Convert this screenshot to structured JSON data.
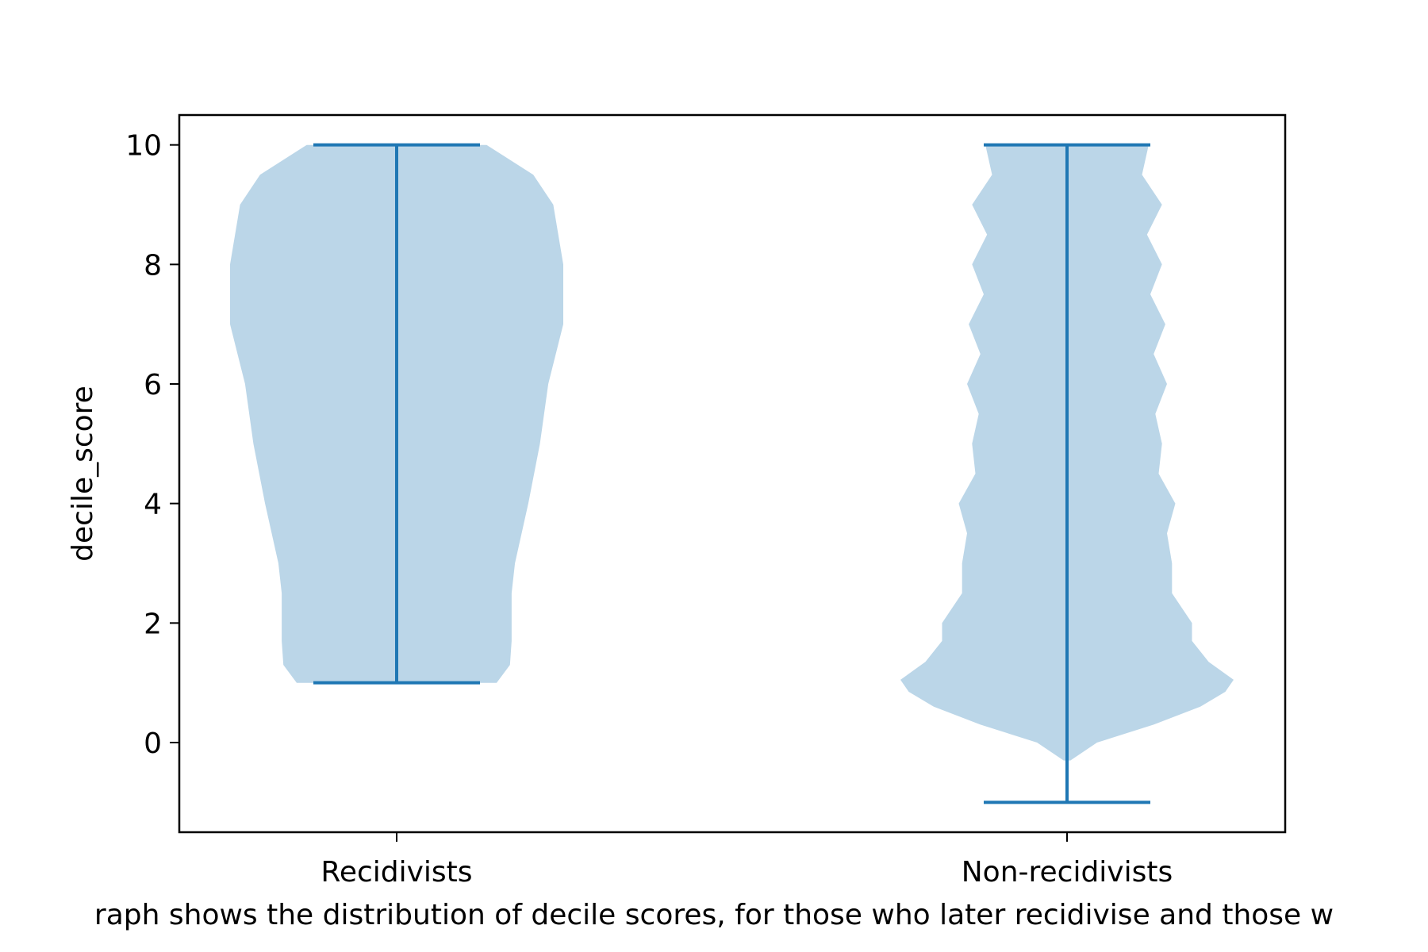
{
  "chart_data": {
    "type": "violin",
    "ylabel": "decile_score",
    "xlabel": "",
    "caption": "raph shows the distribution of decile scores, for those who later recidivise and those w",
    "ylim": [
      -1.5,
      10.5
    ],
    "yticks": [
      0,
      2,
      4,
      6,
      8,
      10
    ],
    "categories": [
      "Recidivists",
      "Non-recidivists"
    ],
    "grid": false,
    "colors": {
      "body": "#bbd6e8",
      "line": "#1f77b4",
      "axis": "#000000"
    },
    "series": [
      {
        "name": "Recidivists",
        "min": 1,
        "max": 10,
        "density_profile": [
          [
            1.0,
            0.6
          ],
          [
            1.3,
            0.68
          ],
          [
            1.7,
            0.69
          ],
          [
            2.0,
            0.69
          ],
          [
            2.5,
            0.69
          ],
          [
            3.0,
            0.71
          ],
          [
            4.0,
            0.79
          ],
          [
            5.0,
            0.86
          ],
          [
            6.0,
            0.91
          ],
          [
            7.0,
            1.0
          ],
          [
            8.0,
            1.0
          ],
          [
            9.0,
            0.94
          ],
          [
            9.5,
            0.82
          ],
          [
            10.0,
            0.54
          ]
        ]
      },
      {
        "name": "Non-recidivists",
        "min": -1,
        "max": 10,
        "density_profile": [
          [
            -0.3,
            0.02
          ],
          [
            0.0,
            0.18
          ],
          [
            0.3,
            0.52
          ],
          [
            0.6,
            0.8
          ],
          [
            0.85,
            0.95
          ],
          [
            1.05,
            1.0
          ],
          [
            1.35,
            0.85
          ],
          [
            1.7,
            0.75
          ],
          [
            2.0,
            0.75
          ],
          [
            2.5,
            0.63
          ],
          [
            3.0,
            0.63
          ],
          [
            3.5,
            0.6
          ],
          [
            4.0,
            0.65
          ],
          [
            4.5,
            0.55
          ],
          [
            5.0,
            0.57
          ],
          [
            5.5,
            0.53
          ],
          [
            6.0,
            0.6
          ],
          [
            6.5,
            0.52
          ],
          [
            7.0,
            0.59
          ],
          [
            7.5,
            0.5
          ],
          [
            8.0,
            0.57
          ],
          [
            8.5,
            0.48
          ],
          [
            9.0,
            0.57
          ],
          [
            9.5,
            0.45
          ],
          [
            10.0,
            0.49
          ]
        ]
      }
    ]
  }
}
